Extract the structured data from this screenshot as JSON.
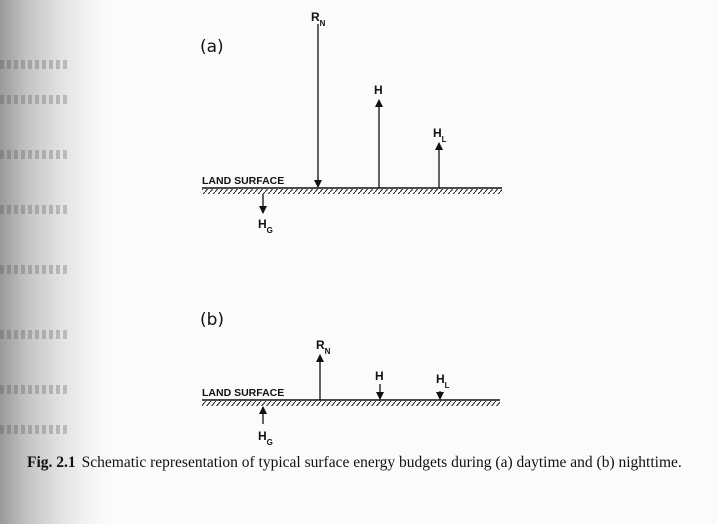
{
  "panel_a": {
    "label": "(a)",
    "surface_label": "LAND SURFACE",
    "fluxes": {
      "rn": {
        "main": "R",
        "sub": "N"
      },
      "h": {
        "main": "H",
        "sub": ""
      },
      "hl": {
        "main": "H",
        "sub": "L"
      },
      "hg": {
        "main": "H",
        "sub": "G"
      }
    }
  },
  "panel_b": {
    "label": "(b)",
    "surface_label": "LAND SURFACE",
    "fluxes": {
      "rn": {
        "main": "R",
        "sub": "N"
      },
      "h": {
        "main": "H",
        "sub": ""
      },
      "hl": {
        "main": "H",
        "sub": "L"
      },
      "hg": {
        "main": "H",
        "sub": "G"
      }
    }
  },
  "caption": {
    "figure_number": "Fig. 2.1",
    "text": "Schematic representation of typical surface energy budgets during (a) daytime and (b) nighttime."
  }
}
